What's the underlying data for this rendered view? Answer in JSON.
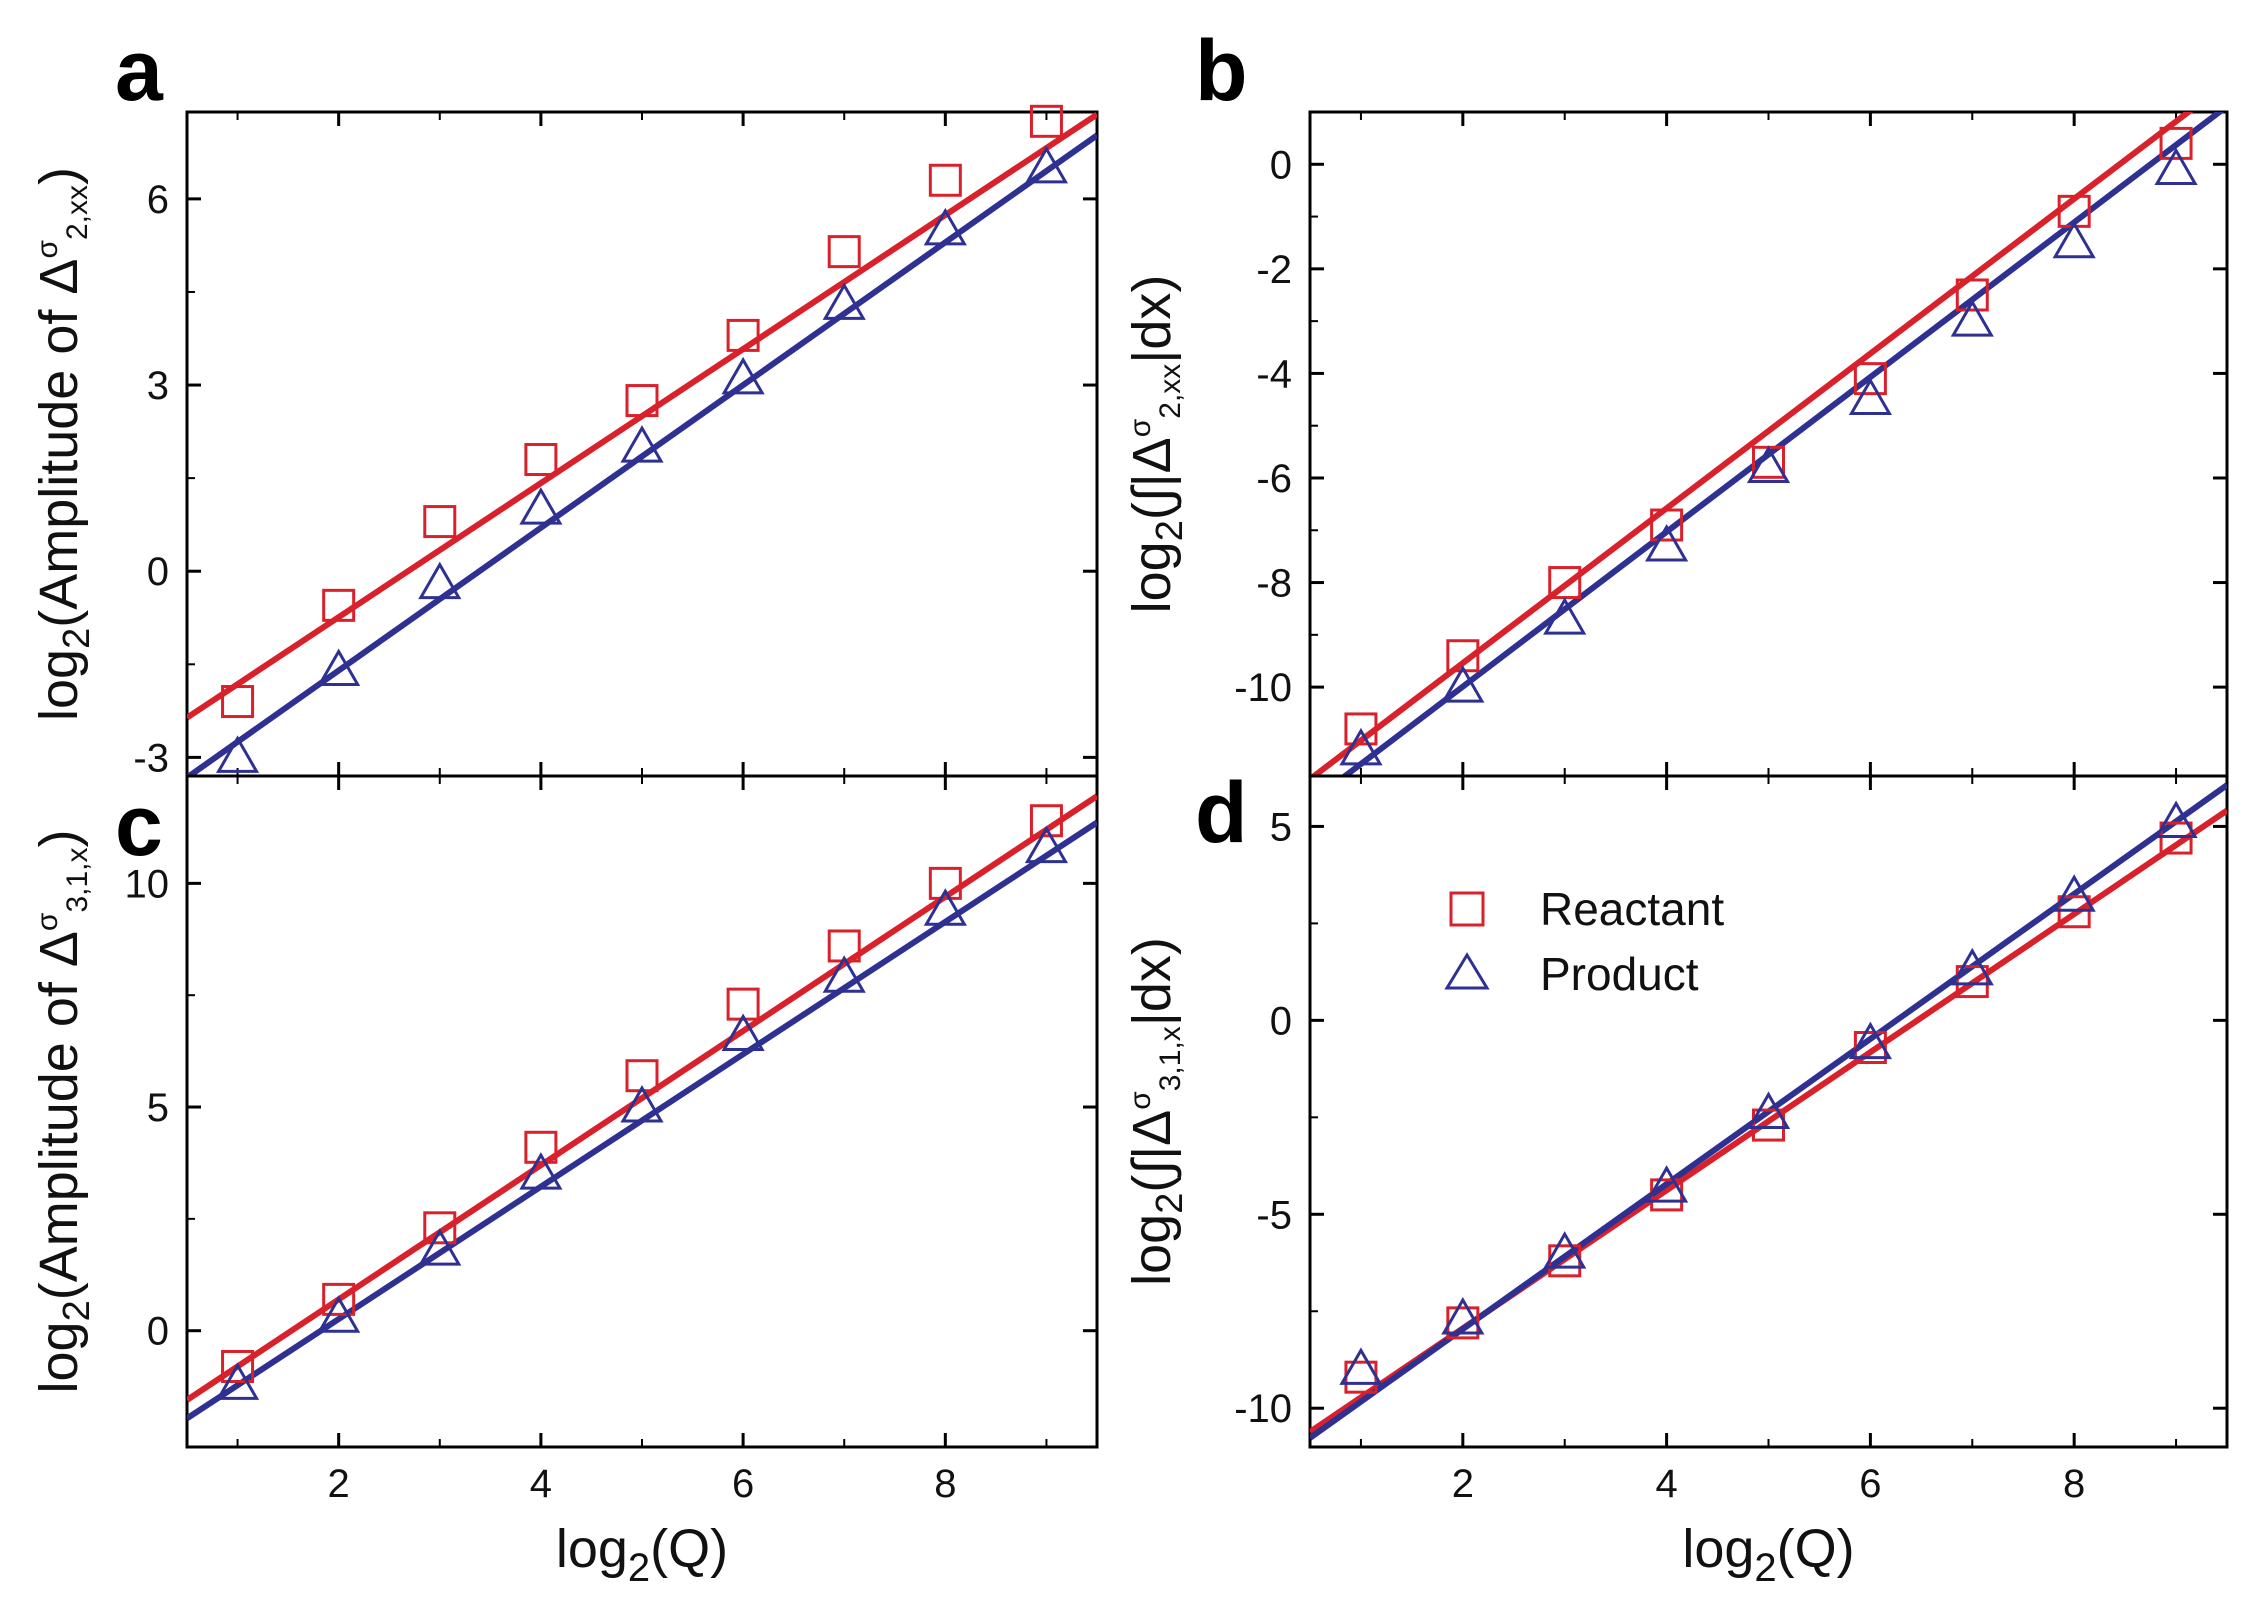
{
  "colors": {
    "reactant": "#d9212b",
    "product": "#2e3192",
    "axis": "#000000"
  },
  "legend": {
    "reactant": "Reactant",
    "product": "Product",
    "placement": "top-left of panel d"
  },
  "shared_x_title": {
    "prefix": "log",
    "sub": "2",
    "suffix": "(Q)"
  },
  "chart_data": [
    {
      "panel": "a",
      "type": "scatter",
      "xlim": [
        0.5,
        9.5
      ],
      "ylim": [
        -3.3,
        7.4
      ],
      "xticks": [
        2,
        4,
        6,
        8
      ],
      "yticks": [
        -3,
        0,
        3,
        6
      ],
      "ytick_labels": [
        "-3",
        "0",
        "3",
        "6"
      ],
      "xtick_labels_shown": false,
      "ylabel": {
        "prefix": "log",
        "sub": "2",
        "main": "(Amplitude of ",
        "delta": "Δ",
        "sup": "σ",
        "dsub": "2,xx",
        "suffix": ")"
      },
      "series": [
        {
          "name": "Reactant",
          "marker": "square",
          "x": [
            1,
            2,
            3,
            4,
            5,
            6,
            7,
            8,
            9
          ],
          "y": [
            -2.1,
            -0.55,
            0.8,
            1.8,
            2.75,
            3.8,
            5.15,
            6.3,
            7.25
          ],
          "fit": {
            "slope": 1.08,
            "intercept": -2.9
          }
        },
        {
          "name": "Product",
          "marker": "triangle",
          "x": [
            1,
            2,
            3,
            4,
            5,
            6,
            7,
            8,
            9
          ],
          "y": [
            -3.0,
            -1.6,
            -0.2,
            1.0,
            2.0,
            3.1,
            4.3,
            5.5,
            6.5
          ],
          "fit": {
            "slope": 1.15,
            "intercept": -3.9
          }
        }
      ]
    },
    {
      "panel": "b",
      "type": "scatter",
      "xlim": [
        0.5,
        9.5
      ],
      "ylim": [
        -11.7,
        1.0
      ],
      "xticks": [
        2,
        4,
        6,
        8
      ],
      "yticks": [
        -10,
        -8,
        -6,
        -4,
        -2,
        0
      ],
      "ytick_labels": [
        "-10",
        "-8",
        "-6",
        "-4",
        "-2",
        "0"
      ],
      "xtick_labels_shown": false,
      "ylabel": {
        "prefix": "log",
        "sub": "2",
        "main": "(∫|",
        "delta": "Δ",
        "sup": "σ",
        "dsub": "2,xx",
        "suffix": "|dx)"
      },
      "series": [
        {
          "name": "Reactant",
          "marker": "square",
          "x": [
            1,
            2,
            3,
            4,
            5,
            6,
            7,
            8,
            9
          ],
          "y": [
            -10.8,
            -9.4,
            -8.0,
            -6.9,
            -5.7,
            -4.1,
            -2.5,
            -0.9,
            0.4
          ],
          "fit": {
            "slope": 1.48,
            "intercept": -12.5
          }
        },
        {
          "name": "Product",
          "marker": "triangle",
          "x": [
            1,
            2,
            3,
            4,
            5,
            6,
            7,
            8,
            9
          ],
          "y": [
            -11.2,
            -10.0,
            -8.7,
            -7.3,
            -5.8,
            -4.5,
            -3.0,
            -1.5,
            -0.1
          ],
          "fit": {
            "slope": 1.48,
            "intercept": -12.95
          }
        }
      ]
    },
    {
      "panel": "c",
      "type": "scatter",
      "xlim": [
        0.5,
        9.5
      ],
      "ylim": [
        -2.6,
        12.4
      ],
      "xticks": [
        2,
        4,
        6,
        8
      ],
      "yticks": [
        0,
        5,
        10
      ],
      "ytick_labels": [
        "0",
        "5",
        "10"
      ],
      "xtick_labels": [
        "2",
        "4",
        "6",
        "8"
      ],
      "xtick_labels_shown": true,
      "ylabel": {
        "prefix": "log",
        "sub": "2",
        "main": "(Amplitude of ",
        "delta": "Δ",
        "sup": "σ",
        "dsub": "3,1,x",
        "suffix": ")"
      },
      "series": [
        {
          "name": "Reactant",
          "marker": "square",
          "x": [
            1,
            2,
            3,
            4,
            5,
            6,
            7,
            8,
            9
          ],
          "y": [
            -0.8,
            0.7,
            2.3,
            4.1,
            5.7,
            7.3,
            8.6,
            10.0,
            11.4
          ],
          "fit": {
            "slope": 1.5,
            "intercept": -2.3
          }
        },
        {
          "name": "Product",
          "marker": "triangle",
          "x": [
            1,
            2,
            3,
            4,
            5,
            6,
            7,
            8,
            9
          ],
          "y": [
            -1.2,
            0.3,
            1.8,
            3.5,
            5.0,
            6.6,
            7.9,
            9.4,
            10.8
          ],
          "fit": {
            "slope": 1.48,
            "intercept": -2.7
          }
        }
      ]
    },
    {
      "panel": "d",
      "type": "scatter",
      "xlim": [
        0.5,
        9.5
      ],
      "ylim": [
        -11.0,
        6.3
      ],
      "xticks": [
        2,
        4,
        6,
        8
      ],
      "yticks": [
        -10,
        -5,
        0,
        5
      ],
      "ytick_labels": [
        "-10",
        "-5",
        "0",
        "5"
      ],
      "xtick_labels": [
        "2",
        "4",
        "6",
        "8"
      ],
      "xtick_labels_shown": true,
      "ylabel": {
        "prefix": "log",
        "sub": "2",
        "main": "(∫|",
        "delta": "Δ",
        "sup": "σ",
        "dsub": "3,1,x",
        "suffix": "|dx)"
      },
      "series": [
        {
          "name": "Reactant",
          "marker": "square",
          "x": [
            1,
            2,
            3,
            4,
            5,
            6,
            7,
            8,
            9
          ],
          "y": [
            -9.2,
            -7.8,
            -6.2,
            -4.5,
            -2.7,
            -0.7,
            1.0,
            2.8,
            4.7
          ],
          "fit": {
            "slope": 1.78,
            "intercept": -11.5
          }
        },
        {
          "name": "Product",
          "marker": "triangle",
          "x": [
            1,
            2,
            3,
            4,
            5,
            6,
            7,
            8,
            9
          ],
          "y": [
            -9.0,
            -7.7,
            -6.0,
            -4.3,
            -2.4,
            -0.6,
            1.3,
            3.2,
            5.1
          ],
          "fit": {
            "slope": 1.87,
            "intercept": -11.7
          }
        }
      ]
    }
  ]
}
